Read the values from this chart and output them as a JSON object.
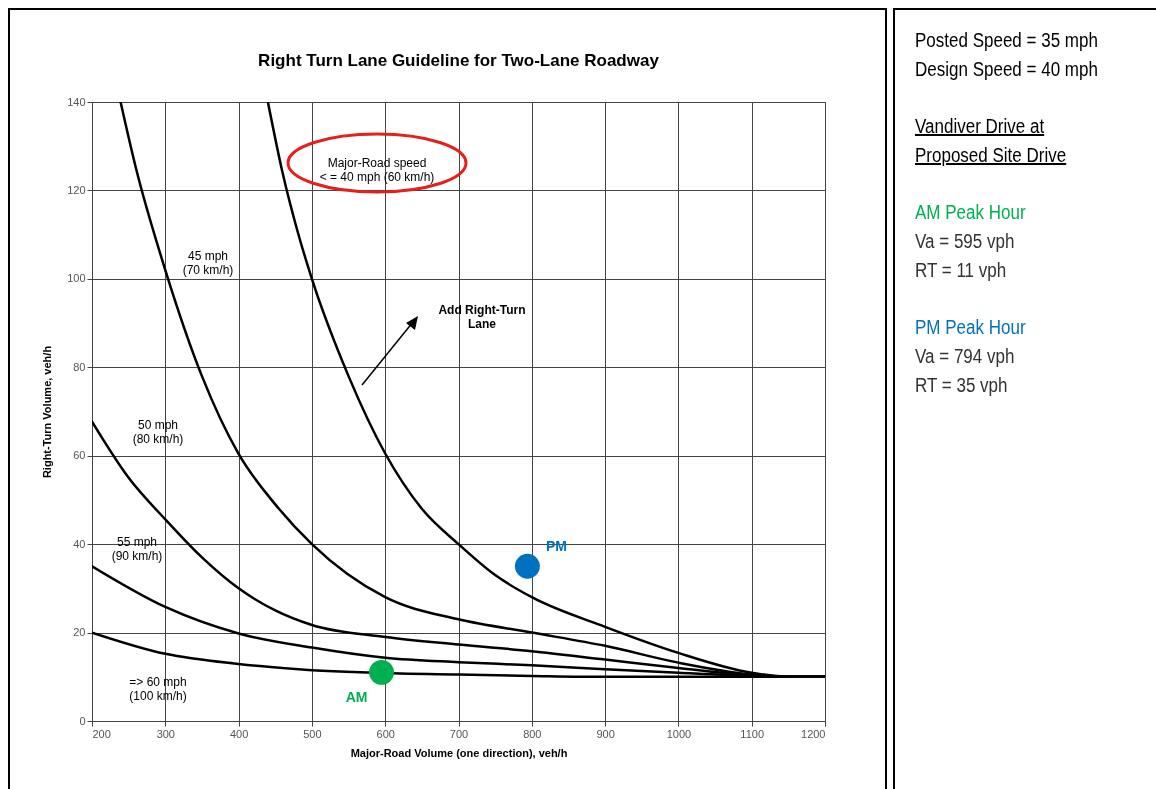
{
  "chart_data": [
    {
      "type": "line",
      "title": "Right Turn Lane Guideline for Two-Lane Roadway",
      "xlabel": "Major-Road Volume (one direction), veh/h",
      "ylabel": "Right-Turn Volume, veh/h",
      "xlim": [
        200,
        1200
      ],
      "xticks": [
        200,
        300,
        400,
        500,
        600,
        700,
        800,
        900,
        1000,
        1100,
        1200
      ],
      "ylim": [
        0,
        140
      ],
      "yticks": [
        0,
        20,
        40,
        60,
        80,
        100,
        120,
        140
      ],
      "grid": true,
      "line_style": "solid",
      "annotations": [
        "Add Right-Turn\nLane"
      ],
      "series": [
        {
          "name": "Major-Road speed\n< = 40 mph (60 km/h)",
          "color": "#000000",
          "x": [
            440,
            460,
            480,
            500,
            550,
            600,
            650,
            700,
            750,
            800,
            900,
            1000,
            1100,
            1150,
            1200
          ],
          "values": [
            140,
            124,
            111,
            100,
            78,
            60.5,
            48,
            40,
            33,
            28,
            21.3,
            15.4,
            10.9,
            10,
            10
          ]
        },
        {
          "name": "45 mph\n(70 km/h)",
          "color": "#000000",
          "x": [
            239,
            260,
            300,
            350,
            400,
            450,
            500,
            600,
            700,
            800,
            900,
            1000,
            1100,
            1150,
            1200
          ],
          "values": [
            140,
            125,
            102,
            78,
            60.4,
            49,
            40,
            28,
            23,
            20,
            17,
            13.2,
            10.5,
            10,
            10
          ]
        },
        {
          "name": "50 mph\n(80 km/h)",
          "color": "#000000",
          "x": [
            200,
            250,
            300,
            350,
            400,
            450,
            500,
            600,
            700,
            800,
            900,
            1000,
            1100,
            1150,
            1200
          ],
          "values": [
            67.7,
            55,
            45.6,
            37,
            30,
            25,
            21.7,
            19,
            17.3,
            15.8,
            13.9,
            12,
            10.3,
            10,
            10
          ]
        },
        {
          "name": "55 mph\n(90 km/h)",
          "color": "#000000",
          "x": [
            200,
            300,
            400,
            500,
            600,
            700,
            800,
            900,
            1000,
            1100,
            1150,
            1200
          ],
          "values": [
            35,
            25.8,
            19.8,
            16.6,
            14.3,
            13.3,
            12.6,
            11.7,
            10.9,
            10.2,
            10,
            10
          ]
        },
        {
          "name": "=> 60 mph\n(100 km/h)",
          "color": "#000000",
          "x": [
            200,
            300,
            400,
            500,
            700,
            800,
            900,
            1000,
            1100,
            1150,
            1200
          ],
          "values": [
            20,
            15.2,
            12.9,
            11.5,
            10.5,
            10.2,
            10,
            10,
            10,
            10,
            10
          ]
        },
        {
          "name": "AM",
          "type": "scatter",
          "color": "#00b050",
          "x": [
            595
          ],
          "values": [
            11
          ]
        },
        {
          "name": "PM",
          "type": "scatter",
          "color": "#0070c0",
          "x": [
            794
          ],
          "values": [
            35
          ]
        }
      ]
    },
    {
      "type": "other",
      "annotations": [
        "Posted Speed = 35 mph",
        "Design Speed = 40 mph",
        "Vandiver Drive at Proposed Site Drive",
        "AM Peak Hour",
        "Va = 595 vph",
        "RT = 11 vph",
        "PM Peak Hour",
        "Va = 794 vph",
        "RT = 35 vph"
      ]
    }
  ]
}
